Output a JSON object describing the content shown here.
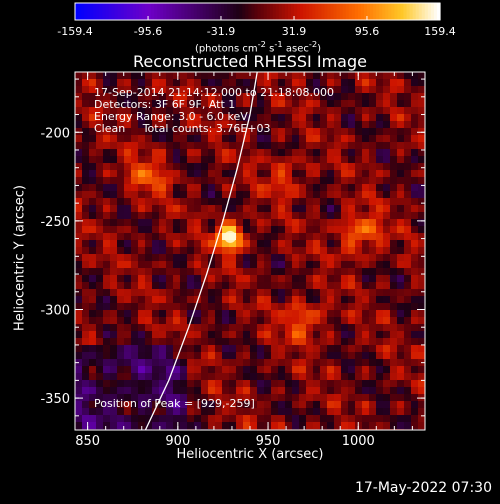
{
  "chart_data": {
    "type": "heatmap",
    "title": "Reconstructed RHESSI Image",
    "xlabel": "Heliocentric X (arcsec)",
    "ylabel": "Heliocentric Y (arcsec)",
    "xlim": [
      843,
      1037
    ],
    "ylim": [
      -368,
      -166
    ],
    "x_ticks": [
      850,
      900,
      950,
      1000
    ],
    "y_ticks": [
      -350,
      -300,
      -250,
      -200
    ],
    "colorbar": {
      "ticks": [
        -159.4,
        -95.6,
        -31.9,
        31.9,
        95.6,
        159.4
      ],
      "range": [
        -159.4,
        159.4
      ],
      "unit_text": "(photons cm",
      "unit_exp1": "-2",
      "unit_mid1": " s",
      "unit_exp2": "-1",
      "unit_mid2": " asec",
      "unit_exp3": "-2",
      "unit_close": ")"
    },
    "annotations": [
      "17-Sep-2014 21:14:12.000 to 21:18:08.000",
      "Detectors: 3F 6F 9F, Att 1",
      "Energy Range: 3.0 - 6.0 keV",
      "Clean     Total counts: 3.76E+03"
    ],
    "peak_text": "Position of Peak = [929,-259]",
    "peak": {
      "x": 929,
      "y": -259,
      "value": 159.4
    },
    "sources": [
      {
        "x": 929,
        "y": -259,
        "value": 159.4
      },
      {
        "x": 1001,
        "y": -257,
        "value": 80
      },
      {
        "x": 970,
        "y": -306,
        "value": 65
      },
      {
        "x": 883,
        "y": -225,
        "value": 55
      },
      {
        "x": 960,
        "y": -225,
        "value": 45
      }
    ],
    "limb_curve": [
      [
        882,
        -368
      ],
      [
        895,
        -340
      ],
      [
        906,
        -310
      ],
      [
        916,
        -280
      ],
      [
        925,
        -250
      ],
      [
        933,
        -220
      ],
      [
        940,
        -190
      ],
      [
        944,
        -166
      ]
    ],
    "colors": {
      "background": "#000000",
      "axes": "#ffffff",
      "limb": "#ffffff"
    }
  },
  "footer": {
    "date": "17-May-2022 07:30"
  }
}
